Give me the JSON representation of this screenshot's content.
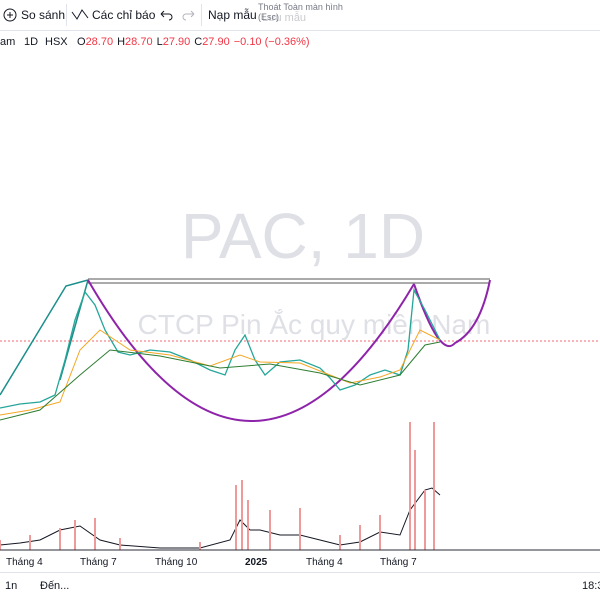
{
  "toolbar": {
    "compare": "So sánh",
    "indicators": "Các chỉ báo",
    "load_template": "Nạp mẫu",
    "exit_fullscreen": "Thoát Toàn màn hình (Esc)",
    "save_template": "Lưu mẫu"
  },
  "symbol": {
    "name": "am",
    "interval": "1D",
    "exchange": "HSX",
    "ohlc": [
      {
        "label": "O",
        "value": "28.70"
      },
      {
        "label": "H",
        "value": "28.70"
      },
      {
        "label": "L",
        "value": "27.90"
      },
      {
        "label": "C",
        "value": "27.90"
      }
    ],
    "change": "−0.10 (−0.36%)"
  },
  "watermark": {
    "title": "PAC, 1D",
    "subtitle": "CTCP Pin Ắc quy miền Nam"
  },
  "time_axis": [
    "Tháng 4",
    "Tháng 7",
    "Tháng 10",
    "2025",
    "Tháng 4",
    "Tháng 7"
  ],
  "bottom_bar": {
    "range": "1n",
    "goto": "Đến...",
    "time": "18:3"
  }
}
